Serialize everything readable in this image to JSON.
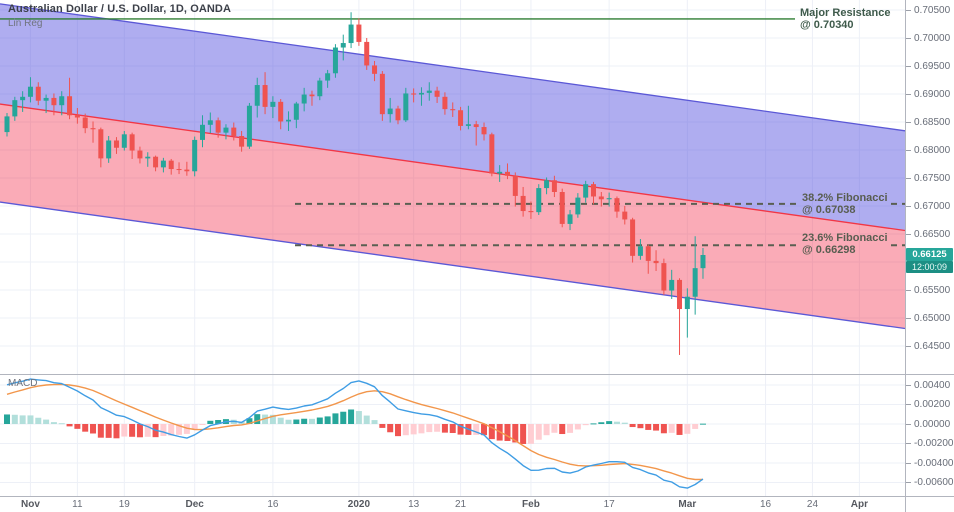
{
  "header": {
    "title": "Australian Dollar / U.S. Dollar, 1D, OANDA",
    "indicator_label": "Lin Reg",
    "macd_label": "MACD"
  },
  "annotations": {
    "resistance": {
      "line1": "Major Resistance",
      "line2": "@ 0.70340",
      "price": 0.7034
    },
    "fib_382": {
      "line1": "38.2% Fibonacci",
      "line2": "@ 0.67038",
      "price": 0.67038
    },
    "fib_236": {
      "line1": "23.6% Fibonacci",
      "line2": "@ 0.66298",
      "price": 0.66298
    }
  },
  "price_scale": {
    "labels": [
      "0.70500",
      "0.70000",
      "0.69500",
      "0.69000",
      "0.68500",
      "0.68000",
      "0.67500",
      "0.67000",
      "0.66500",
      "0.66000",
      "0.65500",
      "0.65000",
      "0.64500"
    ],
    "current_price": "0.66125",
    "countdown": "12:00:09"
  },
  "macd_scale": {
    "labels": [
      "0.00400",
      "0.00200",
      "0.00000",
      "-0.00200",
      "-0.00400",
      "-0.00600"
    ]
  },
  "chart_data": {
    "type": "candlestick+macd",
    "title": "Australian Dollar / U.S. Dollar, 1D, OANDA",
    "price_axis_range": [
      0.6425,
      0.7065
    ],
    "macd_axis_range": [
      -0.0072,
      0.005
    ],
    "grid": true,
    "time_ticks": [
      {
        "label": "Nov",
        "i": 3,
        "bold": true
      },
      {
        "label": "11",
        "i": 9,
        "bold": false
      },
      {
        "label": "19",
        "i": 15,
        "bold": false
      },
      {
        "label": "Dec",
        "i": 24,
        "bold": true
      },
      {
        "label": "16",
        "i": 34,
        "bold": false
      },
      {
        "label": "2020",
        "i": 45,
        "bold": true
      },
      {
        "label": "13",
        "i": 52,
        "bold": false
      },
      {
        "label": "21",
        "i": 58,
        "bold": false
      },
      {
        "label": "Feb",
        "i": 67,
        "bold": true
      },
      {
        "label": "17",
        "i": 77,
        "bold": false
      },
      {
        "label": "Mar",
        "i": 87,
        "bold": true
      },
      {
        "label": "16",
        "i": 97,
        "bold": false
      },
      {
        "label": "24",
        "i": 103,
        "bold": false
      },
      {
        "label": "Apr",
        "i": 109,
        "bold": true
      }
    ],
    "channel": {
      "name": "Lin Reg",
      "upper": {
        "p0": 0.7061,
        "p1": 0.6822
      },
      "middle": {
        "p0": 0.6882,
        "p1": 0.6644
      },
      "lower": {
        "p0": 0.6707,
        "p1": 0.6469
      }
    },
    "dates": [
      "2019-10-29",
      "2019-10-30",
      "2019-10-31",
      "2019-11-01",
      "2019-11-04",
      "2019-11-05",
      "2019-11-06",
      "2019-11-07",
      "2019-11-08",
      "2019-11-11",
      "2019-11-12",
      "2019-11-13",
      "2019-11-14",
      "2019-11-15",
      "2019-11-18",
      "2019-11-19",
      "2019-11-20",
      "2019-11-21",
      "2019-11-22",
      "2019-11-25",
      "2019-11-26",
      "2019-11-27",
      "2019-11-28",
      "2019-11-29",
      "2019-12-02",
      "2019-12-03",
      "2019-12-04",
      "2019-12-05",
      "2019-12-06",
      "2019-12-09",
      "2019-12-10",
      "2019-12-11",
      "2019-12-12",
      "2019-12-13",
      "2019-12-16",
      "2019-12-17",
      "2019-12-18",
      "2019-12-19",
      "2019-12-20",
      "2019-12-23",
      "2019-12-24",
      "2019-12-26",
      "2019-12-27",
      "2019-12-30",
      "2019-12-31",
      "2020-01-02",
      "2020-01-03",
      "2020-01-06",
      "2020-01-07",
      "2020-01-08",
      "2020-01-09",
      "2020-01-10",
      "2020-01-13",
      "2020-01-14",
      "2020-01-15",
      "2020-01-16",
      "2020-01-17",
      "2020-01-20",
      "2020-01-21",
      "2020-01-22",
      "2020-01-23",
      "2020-01-24",
      "2020-01-27",
      "2020-01-28",
      "2020-01-29",
      "2020-01-30",
      "2020-01-31",
      "2020-02-03",
      "2020-02-04",
      "2020-02-05",
      "2020-02-06",
      "2020-02-07",
      "2020-02-10",
      "2020-02-11",
      "2020-02-12",
      "2020-02-13",
      "2020-02-14",
      "2020-02-17",
      "2020-02-18",
      "2020-02-19",
      "2020-02-20",
      "2020-02-21",
      "2020-02-24",
      "2020-02-25",
      "2020-02-26",
      "2020-02-27",
      "2020-02-28",
      "2020-03-02",
      "2020-03-03",
      "2020-03-04"
    ],
    "candles": [
      [
        0.6832,
        0.6866,
        0.6824,
        0.686
      ],
      [
        0.686,
        0.6895,
        0.6852,
        0.6889
      ],
      [
        0.6889,
        0.6905,
        0.6868,
        0.6895
      ],
      [
        0.6895,
        0.693,
        0.6885,
        0.6913
      ],
      [
        0.6913,
        0.6921,
        0.688,
        0.6888
      ],
      [
        0.6888,
        0.6899,
        0.6866,
        0.6893
      ],
      [
        0.6893,
        0.6901,
        0.6862,
        0.688
      ],
      [
        0.688,
        0.6905,
        0.6862,
        0.6896
      ],
      [
        0.6896,
        0.6929,
        0.6855,
        0.6862
      ],
      [
        0.6862,
        0.6875,
        0.6847,
        0.6858
      ],
      [
        0.6858,
        0.6865,
        0.683,
        0.6839
      ],
      [
        0.6839,
        0.6851,
        0.6813,
        0.6837
      ],
      [
        0.6837,
        0.684,
        0.6769,
        0.6785
      ],
      [
        0.6785,
        0.6825,
        0.6777,
        0.6817
      ],
      [
        0.6817,
        0.6823,
        0.6793,
        0.6804
      ],
      [
        0.6804,
        0.6834,
        0.6799,
        0.6828
      ],
      [
        0.6828,
        0.6831,
        0.6784,
        0.6799
      ],
      [
        0.6799,
        0.6806,
        0.6776,
        0.6785
      ],
      [
        0.6785,
        0.6796,
        0.677,
        0.6788
      ],
      [
        0.6788,
        0.679,
        0.6762,
        0.6769
      ],
      [
        0.6769,
        0.6786,
        0.676,
        0.6781
      ],
      [
        0.6781,
        0.6784,
        0.6756,
        0.6766
      ],
      [
        0.6766,
        0.6778,
        0.6757,
        0.6765
      ],
      [
        0.6765,
        0.6779,
        0.6754,
        0.6762
      ],
      [
        0.6762,
        0.6824,
        0.6753,
        0.6818
      ],
      [
        0.6818,
        0.6862,
        0.6805,
        0.6845
      ],
      [
        0.6845,
        0.6867,
        0.683,
        0.6853
      ],
      [
        0.6853,
        0.6858,
        0.6822,
        0.6831
      ],
      [
        0.6831,
        0.6846,
        0.6819,
        0.684
      ],
      [
        0.684,
        0.6849,
        0.6817,
        0.6825
      ],
      [
        0.6825,
        0.6834,
        0.6797,
        0.6806
      ],
      [
        0.6806,
        0.6884,
        0.6802,
        0.6879
      ],
      [
        0.6879,
        0.6929,
        0.6858,
        0.6916
      ],
      [
        0.6916,
        0.6939,
        0.6864,
        0.6877
      ],
      [
        0.6877,
        0.6896,
        0.6857,
        0.6886
      ],
      [
        0.6886,
        0.6891,
        0.6837,
        0.6851
      ],
      [
        0.6851,
        0.6869,
        0.6834,
        0.6854
      ],
      [
        0.6854,
        0.6886,
        0.6839,
        0.6883
      ],
      [
        0.6883,
        0.6911,
        0.6869,
        0.6899
      ],
      [
        0.6899,
        0.6906,
        0.6879,
        0.6896
      ],
      [
        0.6896,
        0.6929,
        0.6889,
        0.6924
      ],
      [
        0.6924,
        0.6943,
        0.6911,
        0.6937
      ],
      [
        0.6937,
        0.6989,
        0.6929,
        0.6983
      ],
      [
        0.6983,
        0.7006,
        0.696,
        0.6991
      ],
      [
        0.6991,
        0.7046,
        0.6982,
        0.7024
      ],
      [
        0.7024,
        0.7035,
        0.6986,
        0.6993
      ],
      [
        0.6993,
        0.7,
        0.6943,
        0.6951
      ],
      [
        0.6951,
        0.6959,
        0.6923,
        0.6936
      ],
      [
        0.6936,
        0.6941,
        0.6852,
        0.6864
      ],
      [
        0.6864,
        0.6893,
        0.6849,
        0.6874
      ],
      [
        0.6874,
        0.6879,
        0.6846,
        0.6853
      ],
      [
        0.6853,
        0.6911,
        0.685,
        0.6901
      ],
      [
        0.6901,
        0.691,
        0.6885,
        0.6899
      ],
      [
        0.6899,
        0.6912,
        0.6879,
        0.6902
      ],
      [
        0.6902,
        0.6921,
        0.6888,
        0.6906
      ],
      [
        0.6906,
        0.6913,
        0.6884,
        0.6895
      ],
      [
        0.6895,
        0.6903,
        0.6863,
        0.6873
      ],
      [
        0.6873,
        0.6885,
        0.6859,
        0.6871
      ],
      [
        0.6871,
        0.6877,
        0.6835,
        0.6843
      ],
      [
        0.6843,
        0.6879,
        0.6837,
        0.6846
      ],
      [
        0.6846,
        0.6852,
        0.6808,
        0.6841
      ],
      [
        0.6841,
        0.6849,
        0.6817,
        0.6828
      ],
      [
        0.6828,
        0.6831,
        0.6753,
        0.6758
      ],
      [
        0.6758,
        0.6773,
        0.6743,
        0.6761
      ],
      [
        0.6761,
        0.6776,
        0.6748,
        0.6754
      ],
      [
        0.6754,
        0.676,
        0.6699,
        0.6718
      ],
      [
        0.6718,
        0.6734,
        0.6681,
        0.6691
      ],
      [
        0.6691,
        0.6708,
        0.6677,
        0.6689
      ],
      [
        0.6689,
        0.6739,
        0.6684,
        0.6732
      ],
      [
        0.6732,
        0.6751,
        0.6721,
        0.6746
      ],
      [
        0.6746,
        0.6754,
        0.6716,
        0.6725
      ],
      [
        0.6725,
        0.6731,
        0.6662,
        0.6668
      ],
      [
        0.6668,
        0.6693,
        0.6657,
        0.6685
      ],
      [
        0.6685,
        0.6723,
        0.6679,
        0.6715
      ],
      [
        0.6715,
        0.6745,
        0.6706,
        0.6739
      ],
      [
        0.6739,
        0.6743,
        0.6703,
        0.6717
      ],
      [
        0.6717,
        0.6725,
        0.6699,
        0.6712
      ],
      [
        0.6712,
        0.6724,
        0.6699,
        0.6714
      ],
      [
        0.6714,
        0.6717,
        0.6679,
        0.669
      ],
      [
        0.669,
        0.67,
        0.6667,
        0.6676
      ],
      [
        0.6676,
        0.6679,
        0.6599,
        0.6611
      ],
      [
        0.6611,
        0.6641,
        0.6604,
        0.6628
      ],
      [
        0.6628,
        0.6631,
        0.6579,
        0.6602
      ],
      [
        0.6602,
        0.6621,
        0.6584,
        0.6598
      ],
      [
        0.6598,
        0.6606,
        0.6541,
        0.6549
      ],
      [
        0.6549,
        0.6586,
        0.6534,
        0.6568
      ],
      [
        0.6568,
        0.6571,
        0.6434,
        0.6516
      ],
      [
        0.6516,
        0.6553,
        0.6465,
        0.6538
      ],
      [
        0.6538,
        0.6646,
        0.6506,
        0.6589
      ],
      [
        0.6589,
        0.6625,
        0.657,
        0.66125
      ]
    ],
    "macd": {
      "fast": 12,
      "slow": 26,
      "signal": 9,
      "ema_fast_seed": 0.682,
      "ema_slow_seed": 0.678,
      "signal_seed": 0.0028
    }
  },
  "colors": {
    "up": "#26a69a",
    "down": "#ef5350",
    "channel_fill_upper": "rgba(78,74,222,0.45)",
    "channel_fill_lower": "rgba(242,54,84,0.42)",
    "channel_edge": "#5b58d6",
    "channel_mid": "#f23645",
    "resistance_line": "#2e7d32",
    "fib_line": "#5a5f52",
    "macd_line": "#3f9de4",
    "signal_line": "#f2964b",
    "hist_grow_above": "#26a69a",
    "hist_fall_above": "#b2dfdb",
    "hist_fall_below": "#ef5350",
    "hist_grow_below": "#ffcdd2",
    "grid": "#edf0f7",
    "separator": "#b2b5be",
    "badge_bg": "#26a69a",
    "countdown_bg": "#1c8f84"
  }
}
